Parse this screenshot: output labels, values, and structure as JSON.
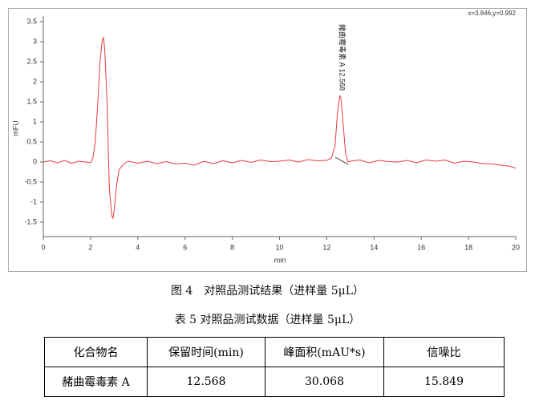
{
  "chart_data": {
    "type": "line",
    "xlabel": "min",
    "ylabel": "mFU",
    "annotation": "x=3.846,y=0.992",
    "peak_label": "赭曲霉毒素 A 12.568",
    "color": "#e8383d",
    "x": [
      0,
      0.3,
      0.6,
      0.9,
      1.2,
      1.5,
      1.8,
      2.0,
      2.1,
      2.2,
      2.3,
      2.4,
      2.5,
      2.55,
      2.6,
      2.7,
      2.75,
      2.8,
      2.9,
      2.95,
      3.0,
      3.1,
      3.2,
      3.4,
      3.6,
      4.0,
      4.4,
      4.8,
      5.2,
      5.6,
      6.0,
      6.4,
      6.8,
      7.2,
      7.6,
      8.0,
      8.4,
      8.8,
      9.2,
      9.6,
      10.0,
      10.4,
      10.8,
      11.2,
      11.6,
      12.0,
      12.2,
      12.35,
      12.45,
      12.55,
      12.6,
      12.7,
      12.8,
      12.9,
      13.0,
      13.4,
      13.8,
      14.2,
      14.6,
      15.0,
      15.4,
      15.8,
      16.2,
      16.6,
      17.0,
      17.4,
      17.8,
      18.2,
      18.6,
      19.0,
      19.4,
      19.7,
      20.0
    ],
    "values": [
      0,
      0.03,
      -0.02,
      0.04,
      -0.03,
      0.02,
      0,
      -0.02,
      0.1,
      0.5,
      1.4,
      2.5,
      3.05,
      3.1,
      2.8,
      1.5,
      0.3,
      -0.7,
      -1.35,
      -1.4,
      -1.2,
      -0.6,
      -0.2,
      -0.05,
      0.02,
      -0.03,
      0.02,
      -0.04,
      0.01,
      -0.05,
      -0.03,
      -0.08,
      0.02,
      -0.04,
      0.03,
      -0.02,
      0.04,
      -0.01,
      0.05,
      0.01,
      0.02,
      0.05,
      0,
      0.06,
      0.03,
      0.04,
      0.1,
      0.4,
      1.2,
      1.65,
      1.6,
      0.9,
      0.2,
      0,
      0.02,
      0.05,
      -0.02,
      0.04,
      0.01,
      0,
      0.04,
      -0.02,
      0.05,
      0.02,
      0.05,
      -0.03,
      0.02,
      0,
      -0.04,
      -0.05,
      -0.08,
      -0.1,
      -0.15
    ],
    "xlim": [
      0,
      20
    ],
    "ylim": [
      -1.86,
      3.64
    ],
    "xticks": [
      0,
      2,
      4,
      6,
      8,
      10,
      12,
      14,
      16,
      18,
      20
    ],
    "yticks": [
      -1.5,
      -1,
      -0.5,
      0,
      0.5,
      1,
      1.5,
      2,
      2.5,
      3,
      3.5
    ]
  },
  "figure_caption": "图 4　对照品测试结果（进样量 5μL）",
  "table_caption": "表 5 对照品测试数据（进样量 5μL）",
  "table": {
    "header": [
      "化合物名",
      "保留时间(min)",
      "峰面积(mAU*s)",
      "信噪比"
    ],
    "rows": [
      [
        "赭曲霉毒素 A",
        "12.568",
        "30.068",
        "15.849"
      ]
    ]
  }
}
